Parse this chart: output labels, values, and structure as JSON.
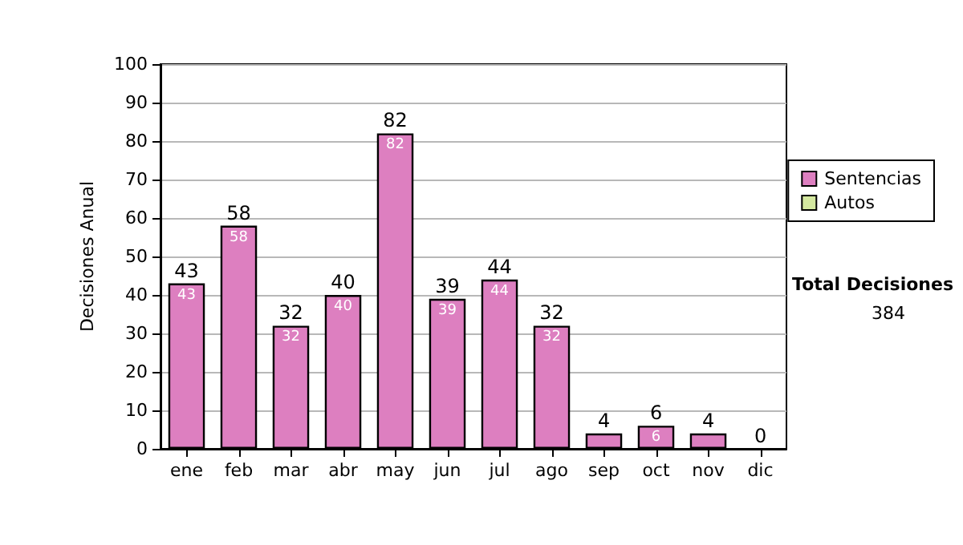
{
  "chart_data": {
    "type": "bar",
    "ylabel": "Decisiones Anual",
    "categories": [
      "ene",
      "feb",
      "mar",
      "abr",
      "may",
      "jun",
      "jul",
      "ago",
      "sep",
      "oct",
      "nov",
      "dic"
    ],
    "series": [
      {
        "name": "Sentencias",
        "color": "#dd7fc0",
        "values": [
          43,
          58,
          32,
          40,
          82,
          39,
          44,
          32,
          4,
          6,
          4,
          0
        ],
        "value_labels": [
          "43",
          "58",
          "32",
          "40",
          "82",
          "39",
          "44",
          "32",
          null,
          "6",
          null,
          null
        ]
      },
      {
        "name": "Autos",
        "color": "#d4e8a0",
        "values": [
          0,
          0,
          0,
          0,
          0,
          0,
          0,
          0,
          0,
          0,
          0,
          0
        ]
      }
    ],
    "stacked": true,
    "totals": [
      "43",
      "58",
      "32",
      "40",
      "82",
      "39",
      "44",
      "32",
      "4",
      "6",
      "4",
      "0"
    ],
    "ylim": [
      0,
      100
    ],
    "yticks": [
      0,
      10,
      20,
      30,
      40,
      50,
      60,
      70,
      80,
      90,
      100
    ],
    "grid": "y",
    "legend": "right",
    "annotations": [
      "Total Decisiones",
      "384"
    ]
  }
}
